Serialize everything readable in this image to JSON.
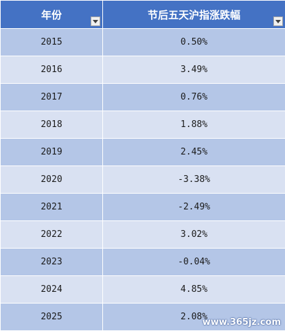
{
  "table": {
    "headers": [
      "年份",
      "节后五天沪指涨跌幅"
    ],
    "rows": [
      {
        "year": "2015",
        "change": "0.50%"
      },
      {
        "year": "2016",
        "change": "3.49%"
      },
      {
        "year": "2017",
        "change": "0.76%"
      },
      {
        "year": "2018",
        "change": "1.88%"
      },
      {
        "year": "2019",
        "change": "2.45%"
      },
      {
        "year": "2020",
        "change": "-3.38%"
      },
      {
        "year": "2021",
        "change": "-2.49%"
      },
      {
        "year": "2022",
        "change": "3.02%"
      },
      {
        "year": "2023",
        "change": "-0.04%"
      },
      {
        "year": "2024",
        "change": "4.85%"
      },
      {
        "year": "2025",
        "change": "2.08%"
      }
    ]
  },
  "watermark": "www.365jz.com",
  "colors": {
    "header": "#4472c4",
    "band_dark": "#b4c6e7",
    "band_light": "#d9e1f2"
  },
  "icons": {
    "filter": "filter-dropdown-icon"
  }
}
